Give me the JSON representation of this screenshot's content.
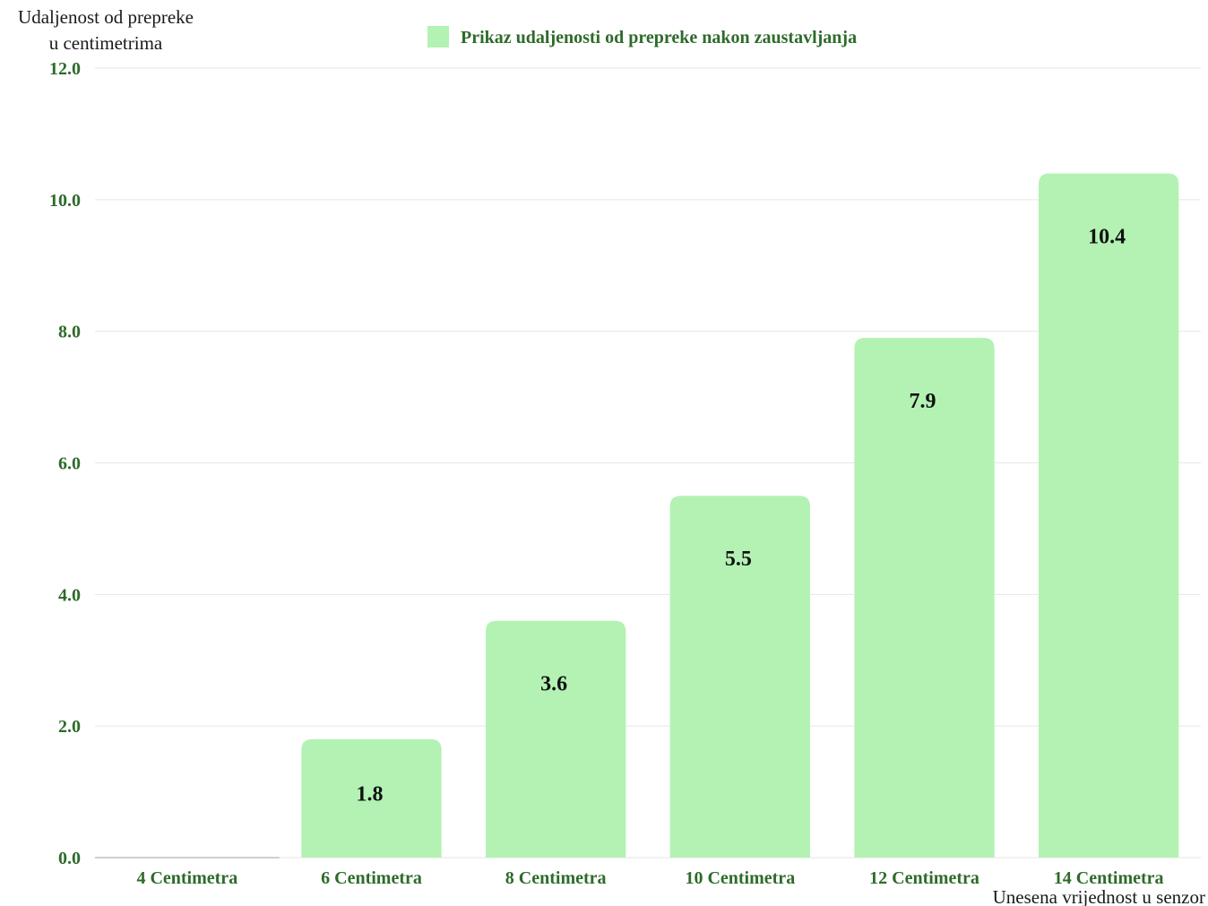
{
  "chart_data": {
    "type": "bar",
    "ylabel_lines": [
      "Udaljenost od prepreke",
      "u centimetrima"
    ],
    "xlabel": "Unesena vrijednost u senzor",
    "categories": [
      "4 Centimetra",
      "6 Centimetra",
      "8 Centimetra",
      "10 Centimetra",
      "12 Centimetra",
      "14 Centimetra"
    ],
    "series": [
      {
        "name": "Prikaz udaljenosti od prepreke nakon zaustavljanja",
        "values": [
          0.0,
          1.8,
          3.6,
          5.5,
          7.9,
          10.4
        ],
        "data_labels": [
          "",
          "1.8",
          "3.6",
          "5.5",
          "7.9",
          "10.4"
        ]
      }
    ],
    "ylim": [
      0,
      12
    ],
    "y_ticks": [
      "0.0",
      "2.0",
      "4.0",
      "6.0",
      "8.0",
      "10.0",
      "12.0"
    ],
    "grid": true,
    "legend_position": "top-center",
    "colors": {
      "bar": "#b3f2b3",
      "tick_text": "#2e6b2a",
      "grid": "#e6e6e6",
      "data_label": "#111111"
    }
  }
}
